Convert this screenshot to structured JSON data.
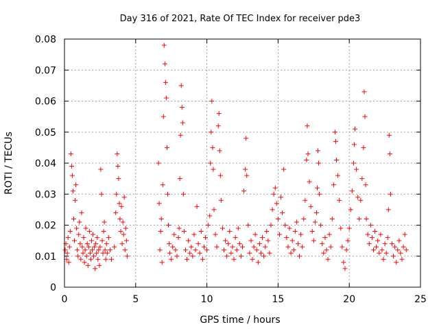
{
  "chart_data": {
    "type": "scatter",
    "title": "Day 316 of 2021, Rate Of TEC Index for receiver pde3",
    "xlabel": "GPS time / hours",
    "ylabel": "ROTI / TECUs",
    "xlim": [
      0,
      25
    ],
    "ylim": [
      0,
      0.08
    ],
    "x_ticks": [
      "0",
      "5",
      "10",
      "15",
      "20",
      "25"
    ],
    "y_ticks": [
      "0",
      "0.01",
      "0.02",
      "0.03",
      "0.04",
      "0.05",
      "0.06",
      "0.07",
      "0.08"
    ],
    "grid": true,
    "marker": "+",
    "color": "#ff0000",
    "series": [
      {
        "points": [
          [
            0.05,
            0.012
          ],
          [
            0.1,
            0.014
          ],
          [
            0.15,
            0.009
          ],
          [
            0.2,
            0.011
          ],
          [
            0.25,
            0.016
          ],
          [
            0.3,
            0.008
          ],
          [
            0.35,
            0.013
          ],
          [
            0.4,
            0.018
          ],
          [
            0.45,
            0.043
          ],
          [
            0.5,
            0.039
          ],
          [
            0.55,
            0.036
          ],
          [
            0.6,
            0.031
          ],
          [
            0.65,
            0.022
          ],
          [
            0.7,
            0.015
          ],
          [
            0.75,
            0.028
          ],
          [
            0.8,
            0.033
          ],
          [
            0.85,
            0.019
          ],
          [
            0.9,
            0.012
          ],
          [
            0.95,
            0.01
          ],
          [
            1.0,
            0.017
          ],
          [
            1.05,
            0.021
          ],
          [
            1.1,
            0.014
          ],
          [
            1.15,
            0.009
          ],
          [
            1.2,
            0.024
          ],
          [
            1.25,
            0.013
          ],
          [
            1.3,
            0.011
          ],
          [
            1.35,
            0.016
          ],
          [
            1.4,
            0.008
          ],
          [
            1.45,
            0.012
          ],
          [
            1.5,
            0.019
          ],
          [
            1.55,
            0.01
          ],
          [
            1.6,
            0.014
          ],
          [
            1.65,
            0.007
          ],
          [
            1.7,
            0.013
          ],
          [
            1.75,
            0.018
          ],
          [
            1.8,
            0.011
          ],
          [
            1.85,
            0.009
          ],
          [
            1.9,
            0.015
          ],
          [
            1.95,
            0.012
          ],
          [
            2.0,
            0.017
          ],
          [
            2.05,
            0.01
          ],
          [
            2.1,
            0.013
          ],
          [
            2.15,
            0.006
          ],
          [
            2.2,
            0.014
          ],
          [
            2.25,
            0.011
          ],
          [
            2.3,
            0.016
          ],
          [
            2.35,
            0.009
          ],
          [
            2.4,
            0.012
          ],
          [
            2.45,
            0.007
          ],
          [
            2.5,
            0.013
          ],
          [
            2.55,
            0.038
          ],
          [
            2.6,
            0.03
          ],
          [
            2.65,
            0.015
          ],
          [
            2.7,
            0.011
          ],
          [
            2.75,
            0.018
          ],
          [
            2.8,
            0.021
          ],
          [
            2.85,
            0.012
          ],
          [
            2.9,
            0.009
          ],
          [
            2.95,
            0.014
          ],
          [
            3.0,
            0.011
          ],
          [
            3.1,
            0.016
          ],
          [
            3.2,
            0.012
          ],
          [
            3.3,
            0.009
          ],
          [
            3.5,
            0.013
          ],
          [
            3.6,
            0.024
          ],
          [
            3.65,
            0.03
          ],
          [
            3.7,
            0.043
          ],
          [
            3.75,
            0.039
          ],
          [
            3.8,
            0.035
          ],
          [
            3.85,
            0.027
          ],
          [
            3.9,
            0.022
          ],
          [
            3.95,
            0.018
          ],
          [
            4.0,
            0.026
          ],
          [
            4.05,
            0.014
          ],
          [
            4.1,
            0.021
          ],
          [
            4.15,
            0.017
          ],
          [
            4.2,
            0.029
          ],
          [
            4.25,
            0.012
          ],
          [
            4.3,
            0.019
          ],
          [
            4.35,
            0.015
          ],
          [
            4.4,
            0.01
          ],
          [
            6.6,
            0.04
          ],
          [
            6.65,
            0.027
          ],
          [
            6.7,
            0.012
          ],
          [
            6.75,
            0.018
          ],
          [
            6.8,
            0.022
          ],
          [
            6.85,
            0.008
          ],
          [
            6.9,
            0.033
          ],
          [
            6.95,
            0.055
          ],
          [
            7.0,
            0.078
          ],
          [
            7.05,
            0.072
          ],
          [
            7.1,
            0.066
          ],
          [
            7.15,
            0.061
          ],
          [
            7.2,
            0.045
          ],
          [
            7.25,
            0.03
          ],
          [
            7.3,
            0.02
          ],
          [
            7.35,
            0.014
          ],
          [
            7.4,
            0.011
          ],
          [
            7.5,
            0.009
          ],
          [
            7.6,
            0.013
          ],
          [
            7.7,
            0.017
          ],
          [
            7.8,
            0.012
          ],
          [
            7.9,
            0.01
          ],
          [
            8.0,
            0.016
          ],
          [
            8.05,
            0.019
          ],
          [
            8.1,
            0.035
          ],
          [
            8.15,
            0.049
          ],
          [
            8.2,
            0.065
          ],
          [
            8.25,
            0.058
          ],
          [
            8.3,
            0.053
          ],
          [
            8.35,
            0.03
          ],
          [
            8.4,
            0.018
          ],
          [
            8.5,
            0.012
          ],
          [
            8.6,
            0.009
          ],
          [
            8.7,
            0.015
          ],
          [
            8.8,
            0.011
          ],
          [
            8.9,
            0.013
          ],
          [
            9.0,
            0.01
          ],
          [
            9.1,
            0.017
          ],
          [
            9.2,
            0.012
          ],
          [
            9.3,
            0.026
          ],
          [
            9.4,
            0.014
          ],
          [
            9.5,
            0.011
          ],
          [
            9.6,
            0.018
          ],
          [
            9.7,
            0.009
          ],
          [
            9.8,
            0.013
          ],
          [
            9.9,
            0.016
          ],
          [
            10.0,
            0.012
          ],
          [
            10.1,
            0.02
          ],
          [
            10.2,
            0.023
          ],
          [
            10.25,
            0.04
          ],
          [
            10.3,
            0.05
          ],
          [
            10.35,
            0.06
          ],
          [
            10.4,
            0.045
          ],
          [
            10.45,
            0.038
          ],
          [
            10.5,
            0.025
          ],
          [
            10.6,
            0.017
          ],
          [
            10.7,
            0.013
          ],
          [
            10.8,
            0.052
          ],
          [
            10.85,
            0.056
          ],
          [
            10.9,
            0.044
          ],
          [
            10.95,
            0.036
          ],
          [
            11.0,
            0.028
          ],
          [
            11.1,
            0.019
          ],
          [
            11.2,
            0.012
          ],
          [
            11.3,
            0.015
          ],
          [
            11.4,
            0.01
          ],
          [
            11.5,
            0.014
          ],
          [
            11.6,
            0.018
          ],
          [
            11.7,
            0.011
          ],
          [
            11.8,
            0.013
          ],
          [
            11.9,
            0.009
          ],
          [
            12.0,
            0.016
          ],
          [
            12.1,
            0.012
          ],
          [
            12.2,
            0.019
          ],
          [
            12.3,
            0.014
          ],
          [
            12.4,
            0.01
          ],
          [
            12.5,
            0.013
          ],
          [
            12.6,
            0.031
          ],
          [
            12.7,
            0.038
          ],
          [
            12.75,
            0.048
          ],
          [
            12.8,
            0.036
          ],
          [
            12.9,
            0.02
          ],
          [
            13.0,
            0.011
          ],
          [
            13.1,
            0.015
          ],
          [
            13.2,
            0.009
          ],
          [
            13.3,
            0.013
          ],
          [
            13.4,
            0.017
          ],
          [
            13.5,
            0.012
          ],
          [
            13.6,
            0.008
          ],
          [
            13.7,
            0.014
          ],
          [
            13.8,
            0.011
          ],
          [
            13.9,
            0.016
          ],
          [
            14.0,
            0.01
          ],
          [
            14.1,
            0.013
          ],
          [
            14.2,
            0.018
          ],
          [
            14.3,
            0.015
          ],
          [
            14.4,
            0.011
          ],
          [
            14.5,
            0.02
          ],
          [
            14.6,
            0.025
          ],
          [
            14.7,
            0.03
          ],
          [
            14.8,
            0.032
          ],
          [
            14.9,
            0.027
          ],
          [
            15.0,
            0.022
          ],
          [
            15.1,
            0.017
          ],
          [
            15.2,
            0.029
          ],
          [
            15.3,
            0.024
          ],
          [
            15.4,
            0.038
          ],
          [
            15.5,
            0.02
          ],
          [
            15.6,
            0.016
          ],
          [
            15.7,
            0.013
          ],
          [
            15.8,
            0.019
          ],
          [
            15.9,
            0.011
          ],
          [
            16.0,
            0.015
          ],
          [
            16.1,
            0.012
          ],
          [
            16.2,
            0.018
          ],
          [
            16.3,
            0.021
          ],
          [
            16.4,
            0.014
          ],
          [
            16.5,
            0.01
          ],
          [
            16.6,
            0.017
          ],
          [
            16.7,
            0.013
          ],
          [
            16.8,
            0.022
          ],
          [
            16.9,
            0.028
          ],
          [
            17.0,
            0.041
          ],
          [
            17.05,
            0.052
          ],
          [
            17.1,
            0.043
          ],
          [
            17.2,
            0.034
          ],
          [
            17.3,
            0.026
          ],
          [
            17.4,
            0.018
          ],
          [
            17.5,
            0.015
          ],
          [
            17.6,
            0.021
          ],
          [
            17.7,
            0.024
          ],
          [
            17.75,
            0.032
          ],
          [
            17.8,
            0.044
          ],
          [
            17.85,
            0.04
          ],
          [
            17.9,
            0.03
          ],
          [
            18.0,
            0.02
          ],
          [
            18.1,
            0.014
          ],
          [
            18.2,
            0.011
          ],
          [
            18.3,
            0.016
          ],
          [
            18.4,
            0.012
          ],
          [
            18.5,
            0.009
          ],
          [
            18.6,
            0.017
          ],
          [
            18.7,
            0.013
          ],
          [
            18.8,
            0.022
          ],
          [
            18.9,
            0.033
          ],
          [
            19.0,
            0.05
          ],
          [
            19.05,
            0.047
          ],
          [
            19.1,
            0.041
          ],
          [
            19.2,
            0.036
          ],
          [
            19.3,
            0.028
          ],
          [
            19.4,
            0.019
          ],
          [
            19.5,
            0.013
          ],
          [
            19.6,
            0.008
          ],
          [
            19.7,
            0.006
          ],
          [
            19.8,
            0.012
          ],
          [
            19.9,
            0.015
          ],
          [
            20.0,
            0.019
          ],
          [
            20.1,
            0.025
          ],
          [
            20.2,
            0.031
          ],
          [
            20.3,
            0.04
          ],
          [
            20.35,
            0.046
          ],
          [
            20.4,
            0.051
          ],
          [
            20.5,
            0.038
          ],
          [
            20.6,
            0.029
          ],
          [
            20.7,
            0.022
          ],
          [
            20.8,
            0.028
          ],
          [
            20.9,
            0.035
          ],
          [
            21.0,
            0.045
          ],
          [
            21.05,
            0.063
          ],
          [
            21.1,
            0.055
          ],
          [
            21.15,
            0.033
          ],
          [
            21.2,
            0.022
          ],
          [
            21.3,
            0.017
          ],
          [
            21.4,
            0.014
          ],
          [
            21.5,
            0.02
          ],
          [
            21.6,
            0.016
          ],
          [
            21.7,
            0.012
          ],
          [
            21.8,
            0.018
          ],
          [
            21.9,
            0.013
          ],
          [
            22.0,
            0.015
          ],
          [
            22.1,
            0.011
          ],
          [
            22.2,
            0.017
          ],
          [
            22.3,
            0.012
          ],
          [
            22.4,
            0.009
          ],
          [
            22.5,
            0.014
          ],
          [
            22.6,
            0.011
          ],
          [
            22.7,
            0.016
          ],
          [
            22.75,
            0.025
          ],
          [
            22.8,
            0.049
          ],
          [
            22.85,
            0.043
          ],
          [
            22.9,
            0.03
          ],
          [
            23.0,
            0.014
          ],
          [
            23.1,
            0.01
          ],
          [
            23.2,
            0.013
          ],
          [
            23.3,
            0.008
          ],
          [
            23.4,
            0.012
          ],
          [
            23.5,
            0.015
          ],
          [
            23.6,
            0.011
          ],
          [
            23.7,
            0.009
          ],
          [
            23.8,
            0.013
          ],
          [
            23.9,
            0.017
          ],
          [
            24.0,
            0.012
          ]
        ]
      }
    ]
  }
}
